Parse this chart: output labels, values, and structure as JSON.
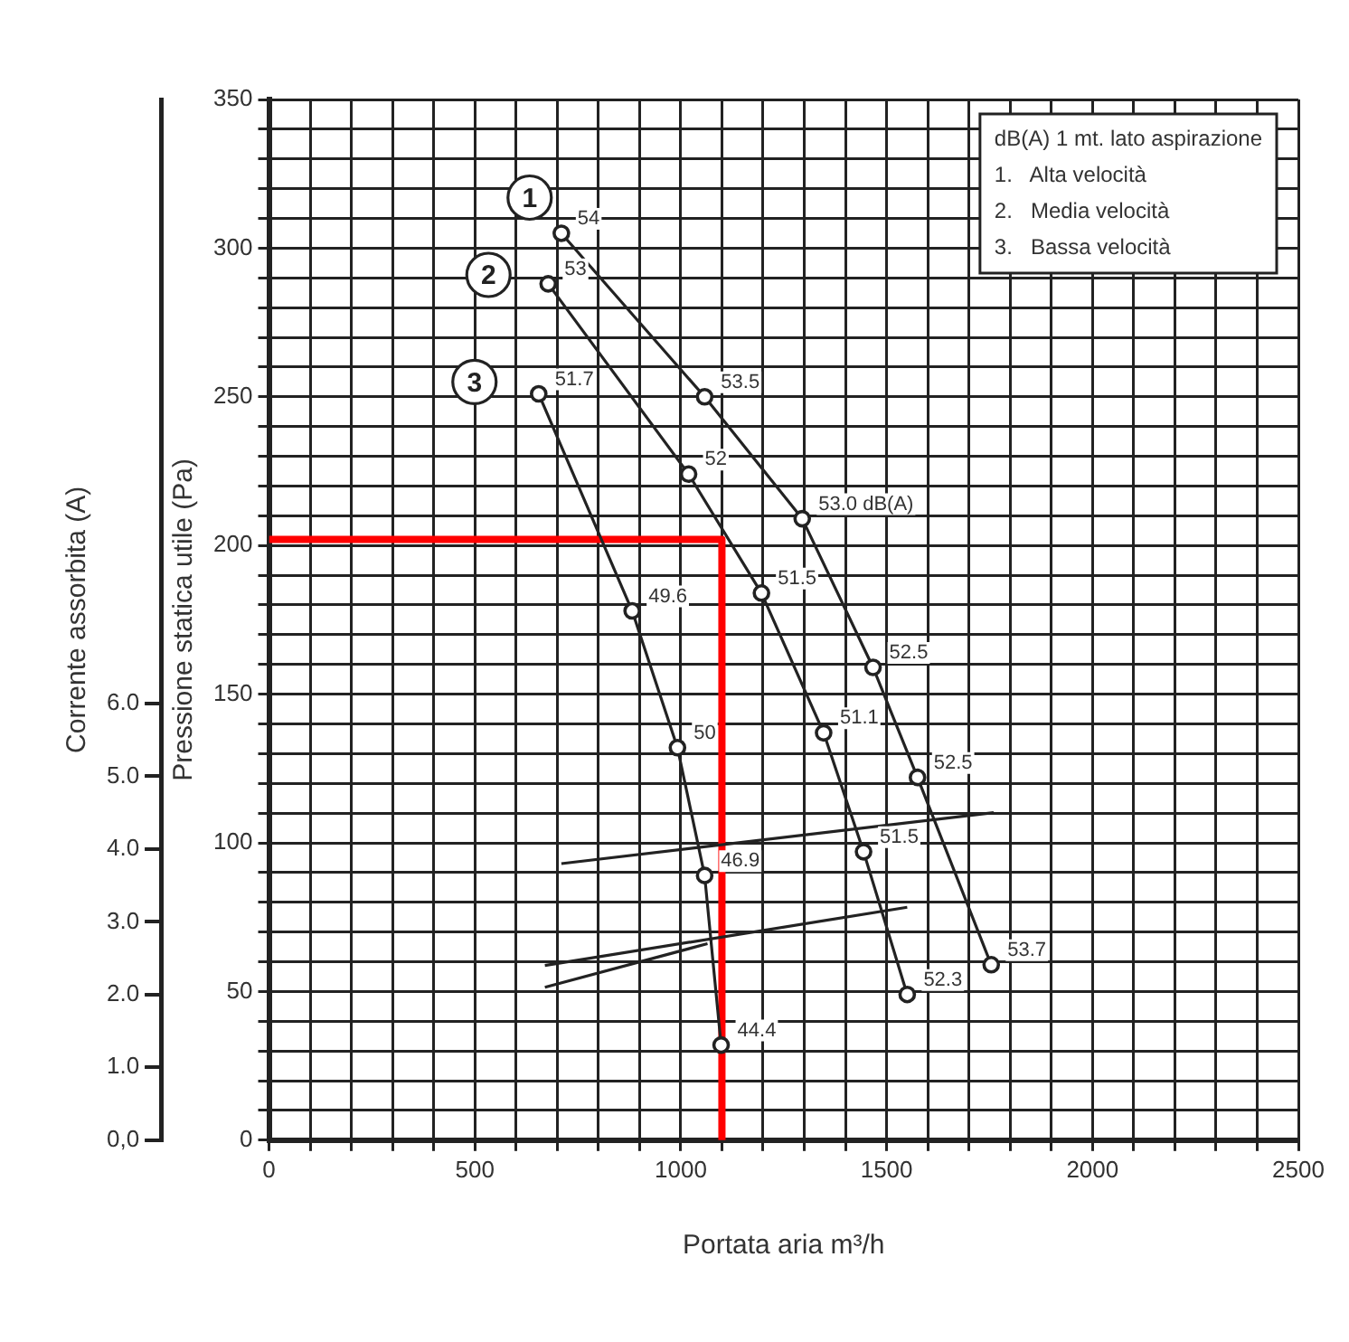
{
  "chart_data": {
    "type": "line",
    "xlabel": "Portata aria m³/h",
    "ylabel": "Pressione statica utile (Pa)",
    "y2label": "Corrente assorbita (A)",
    "xlim": [
      0,
      2500
    ],
    "ylim": [
      0,
      350
    ],
    "y2lim": [
      0,
      14.3
    ],
    "xticks": [
      0,
      {
        "value": 100,
        "label": null
      },
      {
        "value": 200,
        "label": null
      },
      {
        "value": 300,
        "label": null
      },
      {
        "value": 400,
        "label": null
      },
      500,
      {
        "value": 600,
        "label": null
      },
      {
        "value": 700,
        "label": null
      },
      {
        "value": 800,
        "label": null
      },
      {
        "value": 900,
        "label": null
      },
      1000,
      {
        "value": 1100,
        "label": null
      },
      {
        "value": 1200,
        "label": null
      },
      {
        "value": 1300,
        "label": null
      },
      {
        "value": 1400,
        "label": null
      },
      1500,
      {
        "value": 1600,
        "label": null
      },
      {
        "value": 1700,
        "label": null
      },
      {
        "value": 1800,
        "label": null
      },
      {
        "value": 1900,
        "label": null
      },
      2000,
      {
        "value": 2100,
        "label": null
      },
      {
        "value": 2200,
        "label": null
      },
      {
        "value": 2300,
        "label": null
      },
      {
        "value": 2400,
        "label": null
      },
      2500
    ],
    "yticks": [
      0,
      {
        "value": 10,
        "label": null
      },
      {
        "value": 20,
        "label": null
      },
      {
        "value": 30,
        "label": null
      },
      {
        "value": 40,
        "label": null
      },
      50,
      {
        "value": 60,
        "label": null
      },
      {
        "value": 70,
        "label": null
      },
      {
        "value": 80,
        "label": null
      },
      {
        "value": 90,
        "label": null
      },
      100,
      {
        "value": 110,
        "label": null
      },
      {
        "value": 120,
        "label": null
      },
      {
        "value": 130,
        "label": null
      },
      {
        "value": 140,
        "label": null
      },
      150,
      {
        "value": 160,
        "label": null
      },
      {
        "value": 170,
        "label": null
      },
      {
        "value": 180,
        "label": null
      },
      {
        "value": 190,
        "label": null
      },
      200,
      {
        "value": 210,
        "label": null
      },
      {
        "value": 220,
        "label": null
      },
      {
        "value": 230,
        "label": null
      },
      {
        "value": 240,
        "label": null
      },
      250,
      {
        "value": 260,
        "label": null
      },
      {
        "value": 270,
        "label": null
      },
      {
        "value": 280,
        "label": null
      },
      {
        "value": 290,
        "label": null
      },
      300,
      {
        "value": 310,
        "label": null
      },
      {
        "value": 320,
        "label": null
      },
      {
        "value": 330,
        "label": null
      },
      {
        "value": 340,
        "label": null
      },
      350
    ],
    "y2ticks": [
      {
        "value": 0,
        "label": "0,0"
      },
      {
        "value": 1,
        "label": "1.0"
      },
      {
        "value": 2,
        "label": "2.0"
      },
      {
        "value": 3,
        "label": "3.0"
      },
      {
        "value": 4,
        "label": "4.0"
      },
      {
        "value": 5,
        "label": "5.0"
      },
      {
        "value": 6,
        "label": "6.0"
      }
    ],
    "grid": true,
    "legend": false,
    "series": [
      {
        "color": "#222222",
        "marker": "circle",
        "x": [
          710,
          1058,
          1295,
          1467,
          1575,
          1754
        ],
        "values": [
          305,
          250,
          209,
          159,
          122,
          59
        ]
      },
      {
        "color": "#222222",
        "marker": "circle",
        "x": [
          678,
          1019,
          1196,
          1347,
          1444,
          1550
        ],
        "values": [
          288,
          224,
          184,
          137,
          97,
          49
        ]
      },
      {
        "color": "#222222",
        "marker": "circle",
        "x": [
          655,
          882,
          992,
          1058,
          1098
        ],
        "values": [
          251,
          178,
          132,
          89,
          32
        ]
      },
      {
        "color": "#222222",
        "marker": "none",
        "axis": "y2",
        "x": [
          710,
          1760
        ],
        "values": [
          3.8,
          4.5
        ]
      },
      {
        "color": "#222222",
        "marker": "none",
        "axis": "y2",
        "x": [
          670,
          1550
        ],
        "values": [
          2.4,
          3.2
        ]
      },
      {
        "color": "#222222",
        "marker": "none",
        "axis": "y2",
        "x": [
          670,
          1065
        ],
        "values": [
          2.1,
          2.7
        ]
      },
      {
        "color": "#ff0000",
        "marker": "none",
        "x": [
          0,
          1100,
          1100
        ],
        "values": [
          202,
          202,
          0
        ]
      }
    ],
    "annotations": [
      "dB(A) 1 mt. lato aspirazione",
      "1.   Alta velocità",
      "2.   Media velocità",
      "3.   Bassa velocità",
      {
        "text": "54",
        "x": 710,
        "y": 305
      },
      {
        "text": "53.5",
        "x": 1058,
        "y": 250
      },
      {
        "text": "53.0 dB(A)",
        "x": 1295,
        "y": 209
      },
      {
        "text": "52.5",
        "x": 1467,
        "y": 159
      },
      {
        "text": "52.5",
        "x": 1575,
        "y": 122
      },
      {
        "text": "53.7",
        "x": 1754,
        "y": 59
      },
      {
        "text": "53",
        "x": 678,
        "y": 288
      },
      {
        "text": "52",
        "x": 1019,
        "y": 224
      },
      {
        "text": "51.5",
        "x": 1196,
        "y": 184
      },
      {
        "text": "51.1",
        "x": 1347,
        "y": 137
      },
      {
        "text": "51.5",
        "x": 1444,
        "y": 97
      },
      {
        "text": "52.3",
        "x": 1550,
        "y": 49
      },
      {
        "text": "51.7",
        "x": 655,
        "y": 251
      },
      {
        "text": "49.6",
        "x": 882,
        "y": 178
      },
      {
        "text": "50",
        "x": 992,
        "y": 132
      },
      {
        "text": "46.9",
        "x": 1058,
        "y": 89
      },
      {
        "text": "44.4",
        "x": 1098,
        "y": 32
      },
      {
        "text": "1",
        "x": 633,
        "y": 317
      },
      {
        "text": "2",
        "x": 533,
        "y": 291
      },
      {
        "text": "3",
        "x": 499,
        "y": 255
      }
    ]
  }
}
